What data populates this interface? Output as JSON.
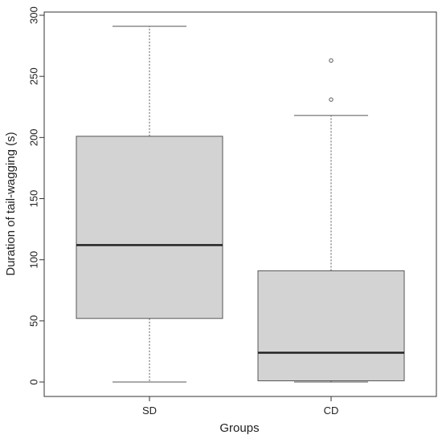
{
  "chart_data": {
    "type": "box",
    "title": "",
    "xlabel": "Groups",
    "ylabel": "Duration of tail-wagging (s)",
    "ylim": [
      0,
      300
    ],
    "yticks": [
      0,
      50,
      100,
      150,
      200,
      250,
      300
    ],
    "categories": [
      "SD",
      "CD"
    ],
    "boxes": [
      {
        "name": "SD",
        "whisker_low": 0,
        "q1": 52,
        "median": 112,
        "q3": 201,
        "whisker_high": 291,
        "outliers": []
      },
      {
        "name": "CD",
        "whisker_low": 0,
        "q1": 1,
        "median": 24,
        "q3": 91,
        "whisker_high": 218,
        "outliers": [
          231,
          263
        ]
      }
    ],
    "grid": false,
    "colors": {
      "box_fill": "#d3d3d3",
      "box_stroke": "#555555",
      "median": "#222222",
      "axis": "#333333"
    }
  }
}
